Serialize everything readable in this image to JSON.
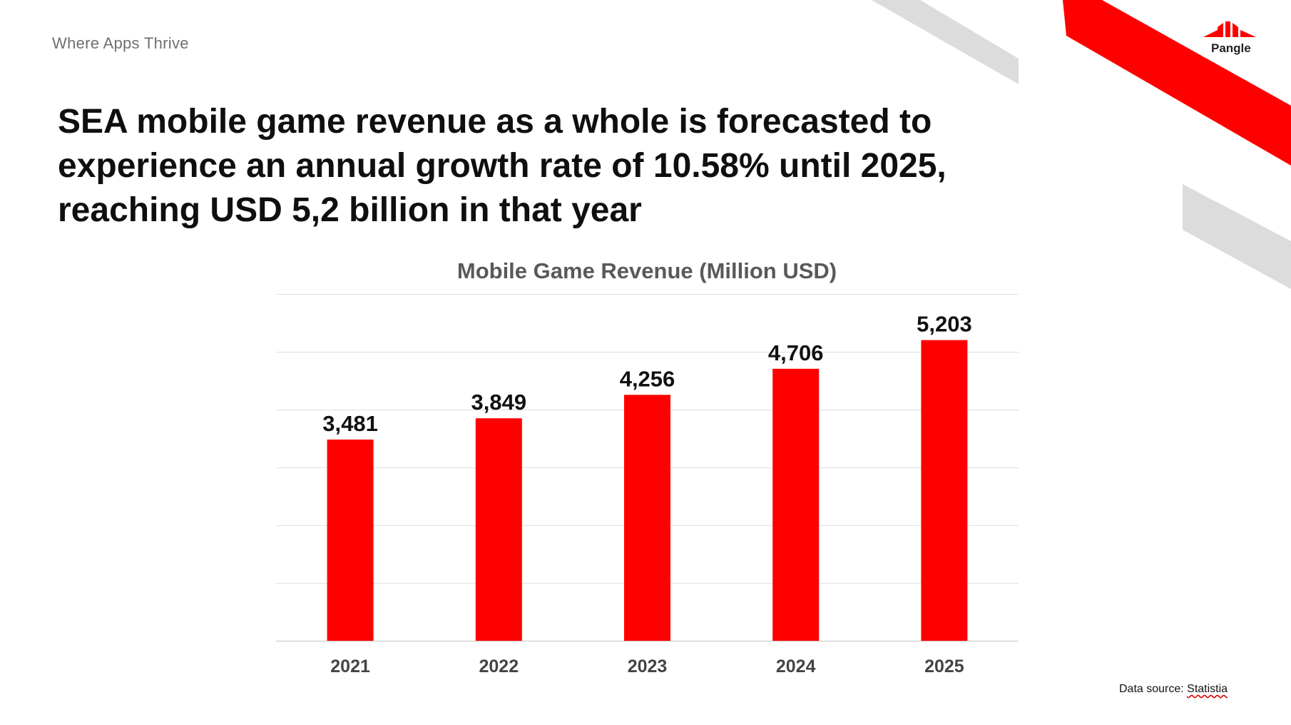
{
  "header": {
    "tagline": "Where Apps Thrive",
    "logo_text": "Pangle"
  },
  "headline": {
    "lines": [
      "SEA mobile game revenue as a whole is forecasted to",
      "experience an annual growth rate of 10.58% until 2025,",
      "reaching USD 5,2 billion in that year"
    ]
  },
  "footer": {
    "source_prefix": "Data source: ",
    "source_name": "Statistia"
  },
  "colors": {
    "bar": "#ff0000",
    "accent_red": "#ff0000",
    "stripe_gray": "#dcdcdc"
  },
  "chart_data": {
    "type": "bar",
    "title": "Mobile Game Revenue (Million USD)",
    "categories": [
      "2021",
      "2022",
      "2023",
      "2024",
      "2025"
    ],
    "values": [
      3481,
      3849,
      4256,
      4706,
      5203
    ],
    "value_labels": [
      "3,481",
      "3,849",
      "4,256",
      "4,706",
      "5,203"
    ],
    "xlabel": "",
    "ylabel": "",
    "ylim": [
      0,
      6000
    ],
    "grid": true,
    "legend": "none"
  }
}
